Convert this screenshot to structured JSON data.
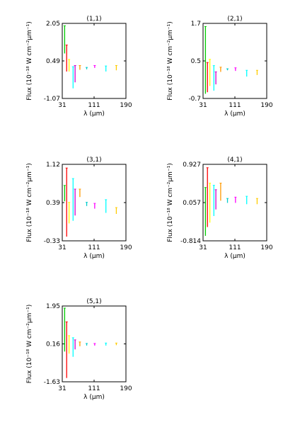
{
  "chart_data": [
    {
      "type": "line",
      "title": "(1,1)",
      "xlabel": "λ (μm)",
      "ylabel": "Flux (10⁻¹⁸ W cm⁻²μm⁻¹)",
      "xlim": [
        31,
        190
      ],
      "ylim": [
        -1.07,
        2.05
      ],
      "xticks": [
        "31",
        "111",
        "190"
      ],
      "yticks": [
        "2.05",
        "0.49",
        "-1.07"
      ],
      "series": [
        {
          "color": "#00cc00",
          "x": 37,
          "min": 0.8,
          "max": 1.95
        },
        {
          "color": "#ff0000",
          "x": 42,
          "min": 0.05,
          "max": 1.15
        },
        {
          "color": "#ffff00",
          "x": 48,
          "min": 0.05,
          "max": 0.55
        },
        {
          "color": "#00ffff",
          "x": 58,
          "min": -0.65,
          "max": 0.25
        },
        {
          "color": "#cc00cc",
          "x": 63,
          "min": -0.4,
          "max": 0.3
        },
        {
          "color": "#ff9900",
          "x": 75,
          "min": 0.12,
          "max": 0.3
        },
        {
          "color": "#00cccc",
          "x": 92,
          "min": 0.14,
          "max": 0.22
        },
        {
          "color": "#ff00ff",
          "x": 112,
          "min": 0.2,
          "max": 0.3
        },
        {
          "color": "#00ffff",
          "x": 140,
          "min": 0.05,
          "max": 0.28
        },
        {
          "color": "#ffcc00",
          "x": 166,
          "min": 0.1,
          "max": 0.3
        }
      ]
    },
    {
      "type": "line",
      "title": "(2,1)",
      "xlabel": "λ (μm)",
      "ylabel": "Flux (10⁻¹⁸ W cm⁻²μm⁻¹)",
      "xlim": [
        31,
        190
      ],
      "ylim": [
        -0.7,
        1.7
      ],
      "xticks": [
        "31",
        "111",
        "190"
      ],
      "yticks": [
        "1.7",
        "0.5",
        "-0.7"
      ],
      "series": [
        {
          "color": "#00cc00",
          "x": 37,
          "min": -0.55,
          "max": 1.6
        },
        {
          "color": "#ff0000",
          "x": 42,
          "min": -0.5,
          "max": 0.45
        },
        {
          "color": "#ffff00",
          "x": 48,
          "min": -0.3,
          "max": 0.55
        },
        {
          "color": "#00ffff",
          "x": 58,
          "min": -0.45,
          "max": 0.35
        },
        {
          "color": "#cc00cc",
          "x": 63,
          "min": -0.25,
          "max": 0.15
        },
        {
          "color": "#ff9900",
          "x": 75,
          "min": 0.15,
          "max": 0.3
        },
        {
          "color": "#00cccc",
          "x": 92,
          "min": 0.2,
          "max": 0.25
        },
        {
          "color": "#ff00ff",
          "x": 112,
          "min": 0.18,
          "max": 0.28
        },
        {
          "color": "#00ffff",
          "x": 140,
          "min": 0.0,
          "max": 0.2
        },
        {
          "color": "#ffcc00",
          "x": 166,
          "min": 0.05,
          "max": 0.2
        }
      ]
    },
    {
      "type": "line",
      "title": "(3,1)",
      "xlabel": "λ (μm)",
      "ylabel": "Flux (10⁻¹⁸ W cm⁻²μm⁻¹)",
      "xlim": [
        31,
        190
      ],
      "ylim": [
        -0.33,
        1.12
      ],
      "xticks": [
        "31",
        "111",
        "190"
      ],
      "yticks": [
        "1.12",
        "0.39",
        "-0.33"
      ],
      "series": [
        {
          "color": "#00cc00",
          "x": 37,
          "min": 0.42,
          "max": 0.72
        },
        {
          "color": "#ff0000",
          "x": 42,
          "min": -0.25,
          "max": 1.05
        },
        {
          "color": "#ffff00",
          "x": 48,
          "min": 0.0,
          "max": 0.4
        },
        {
          "color": "#00ffff",
          "x": 58,
          "min": 0.05,
          "max": 0.85
        },
        {
          "color": "#cc00cc",
          "x": 63,
          "min": 0.15,
          "max": 0.65
        },
        {
          "color": "#ff9900",
          "x": 75,
          "min": 0.5,
          "max": 0.65
        },
        {
          "color": "#00cccc",
          "x": 92,
          "min": 0.33,
          "max": 0.4
        },
        {
          "color": "#ff00ff",
          "x": 112,
          "min": 0.28,
          "max": 0.38
        },
        {
          "color": "#00ffff",
          "x": 140,
          "min": 0.2,
          "max": 0.45
        },
        {
          "color": "#ffcc00",
          "x": 166,
          "min": 0.18,
          "max": 0.3
        }
      ]
    },
    {
      "type": "line",
      "title": "(4,1)",
      "xlabel": "λ (μm)",
      "ylabel": "Flux (10⁻¹⁸ W cm⁻²μm⁻¹)",
      "xlim": [
        31,
        190
      ],
      "ylim": [
        -0.814,
        0.927
      ],
      "xticks": [
        "31",
        "111",
        "190"
      ],
      "yticks": [
        "0.927",
        "0.057",
        "-0.814"
      ],
      "series": [
        {
          "color": "#00cc00",
          "x": 37,
          "min": -0.7,
          "max": 0.4
        },
        {
          "color": "#ff0000",
          "x": 42,
          "min": -0.5,
          "max": 0.85
        },
        {
          "color": "#ffff00",
          "x": 48,
          "min": -0.4,
          "max": 0.5
        },
        {
          "color": "#00ffff",
          "x": 58,
          "min": -0.25,
          "max": 0.45
        },
        {
          "color": "#cc00cc",
          "x": 63,
          "min": -0.1,
          "max": 0.35
        },
        {
          "color": "#ff9900",
          "x": 75,
          "min": 0.1,
          "max": 0.5
        },
        {
          "color": "#00cccc",
          "x": 92,
          "min": 0.05,
          "max": 0.15
        },
        {
          "color": "#ff00ff",
          "x": 112,
          "min": 0.05,
          "max": 0.18
        },
        {
          "color": "#00ffff",
          "x": 140,
          "min": 0.02,
          "max": 0.2
        },
        {
          "color": "#ffcc00",
          "x": 166,
          "min": 0.02,
          "max": 0.15
        }
      ]
    },
    {
      "type": "line",
      "title": "(5,1)",
      "xlabel": "λ (μm)",
      "ylabel": "Flux (10⁻¹⁸ W cm⁻²μm⁻¹)",
      "xlim": [
        31,
        190
      ],
      "ylim": [
        -1.63,
        1.95
      ],
      "xticks": [
        "31",
        "111",
        "190"
      ],
      "yticks": [
        "1.95",
        "0.16",
        "-1.63"
      ],
      "series": [
        {
          "color": "#00cc00",
          "x": 37,
          "min": -0.2,
          "max": 1.85
        },
        {
          "color": "#ff0000",
          "x": 42,
          "min": -1.45,
          "max": 1.2
        },
        {
          "color": "#ffff00",
          "x": 48,
          "min": -0.3,
          "max": 0.55
        },
        {
          "color": "#00ffff",
          "x": 58,
          "min": -0.45,
          "max": 0.45
        },
        {
          "color": "#cc00cc",
          "x": 63,
          "min": -0.1,
          "max": 0.35
        },
        {
          "color": "#ff9900",
          "x": 75,
          "min": 0.05,
          "max": 0.25
        },
        {
          "color": "#00cccc",
          "x": 92,
          "min": 0.08,
          "max": 0.18
        },
        {
          "color": "#ff00ff",
          "x": 112,
          "min": 0.08,
          "max": 0.18
        },
        {
          "color": "#00ffff",
          "x": 140,
          "min": 0.08,
          "max": 0.2
        },
        {
          "color": "#ffcc00",
          "x": 166,
          "min": 0.1,
          "max": 0.2
        }
      ]
    }
  ]
}
